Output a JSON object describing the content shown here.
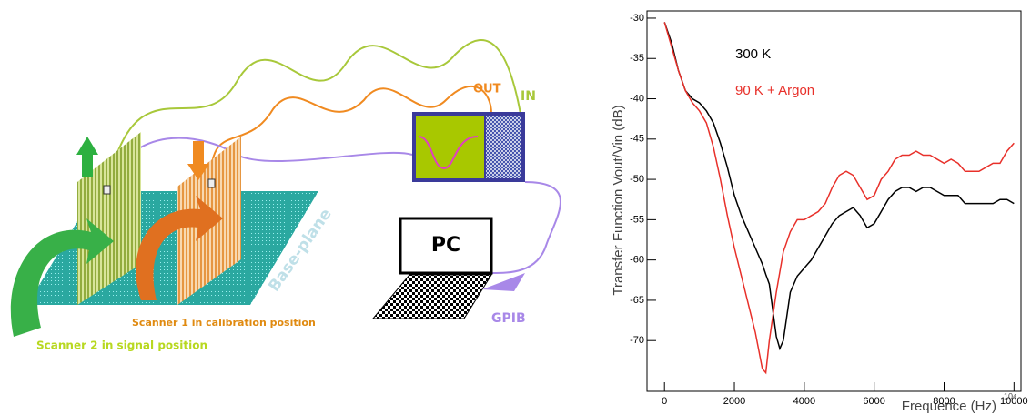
{
  "diagram": {
    "out_label": "OUT",
    "in_label": "IN",
    "pc_label": "PC",
    "gpib_label": "GPIB",
    "baseplane_label": "Base-plane",
    "scanner1_label": "Scanner 1 in calibration position",
    "scanner2_label": "Scanner 2 in signal position"
  },
  "chart_data": {
    "type": "line",
    "y_label": "Transfer Function Vout/Vin (dB)",
    "x_label": "Frequence (Hz)",
    "x_exponent": "10⁴",
    "xlim": [
      -500,
      10200
    ],
    "ylim": [
      -76.3,
      -29.1
    ],
    "xticks": [
      0,
      2000,
      4000,
      6000,
      8000,
      10000
    ],
    "yticks": [
      -30,
      -35,
      -40,
      -45,
      -50,
      -55,
      -60,
      -65,
      -70
    ],
    "x": [
      0,
      200,
      400,
      600,
      800,
      1000,
      1200,
      1400,
      1600,
      1800,
      2000,
      2200,
      2400,
      2600,
      2800,
      2900,
      3000,
      3200,
      3300,
      3400,
      3600,
      3800,
      4000,
      4200,
      4400,
      4600,
      4800,
      5000,
      5200,
      5400,
      5600,
      5800,
      6000,
      6200,
      6400,
      6600,
      6800,
      7000,
      7200,
      7400,
      7600,
      7800,
      8000,
      8200,
      8400,
      8600,
      8800,
      9000,
      9200,
      9400,
      9600,
      9800,
      10000
    ],
    "series": [
      {
        "name": "300 K",
        "color": "#000000",
        "values": [
          -30.5,
          -33,
          -36.5,
          -39,
          -40,
          -40.5,
          -41.5,
          -43,
          -45.5,
          -48.5,
          -52,
          -54.5,
          -56.5,
          -58.5,
          -60.5,
          -61.8,
          -63,
          -69.5,
          -71,
          -70,
          -64,
          -62,
          -61,
          -60,
          -58.5,
          -57,
          -55.5,
          -54.5,
          -54,
          -53.5,
          -54.5,
          -56,
          -55.5,
          -54,
          -52.5,
          -51.5,
          -51,
          -51,
          -51.5,
          -51,
          -51,
          -51.5,
          -52,
          -52,
          -52,
          -53,
          -53,
          -53,
          -53,
          -53,
          -52.5,
          -52.5,
          -53
        ]
      },
      {
        "name": "90 K + Argon",
        "color": "#e8302a",
        "values": [
          -30.5,
          -33.5,
          -36.5,
          -39,
          -40.5,
          -41.5,
          -43,
          -46,
          -50,
          -54.5,
          -58.5,
          -62,
          -65.5,
          -69,
          -73.5,
          -74,
          -70,
          -64,
          -61.5,
          -59,
          -56.5,
          -55,
          -55,
          -54.5,
          -54,
          -53,
          -51,
          -49.5,
          -49,
          -49.5,
          -51,
          -52.5,
          -52,
          -50,
          -49,
          -47.5,
          -47,
          -47,
          -46.5,
          -47,
          -47,
          -47.5,
          -48,
          -47.5,
          -48,
          -49,
          -49,
          -49,
          -48.5,
          -48,
          -48,
          -46.5,
          -45.5
        ]
      }
    ]
  }
}
